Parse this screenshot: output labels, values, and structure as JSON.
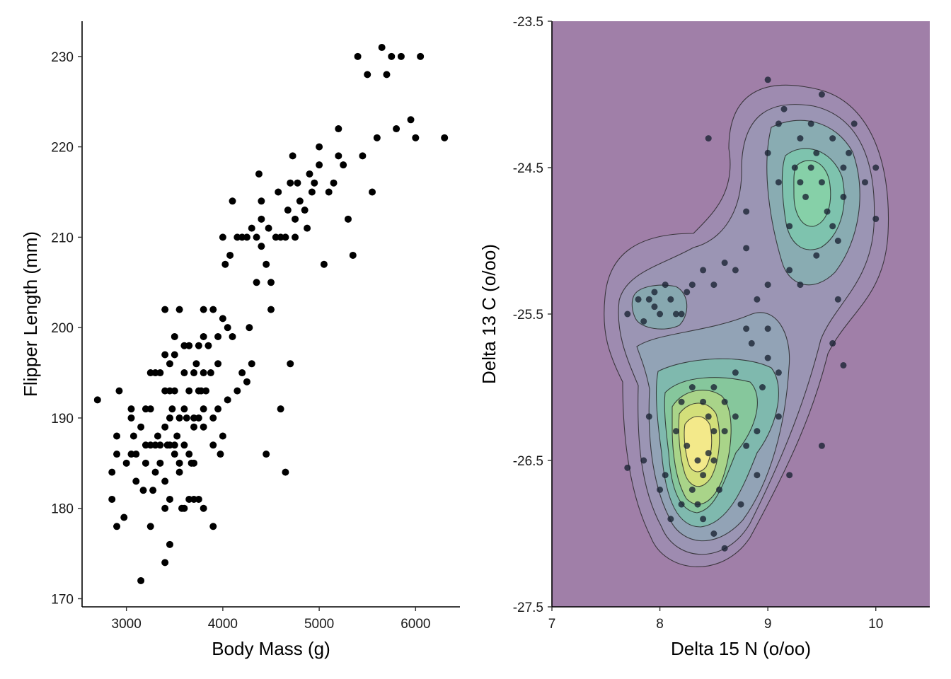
{
  "chart_data": [
    {
      "type": "scatter",
      "xlabel": "Body Mass (g)",
      "ylabel": "Flipper Length (mm)",
      "xlim": [
        2540,
        6460
      ],
      "ylim": [
        169.1,
        233.9
      ],
      "xticks": [
        3000,
        4000,
        5000,
        6000
      ],
      "yticks": [
        170,
        180,
        190,
        200,
        210,
        220,
        230
      ],
      "tick_labels_x": [
        "3000",
        "4000",
        "5000",
        "6000"
      ],
      "tick_labels_y": [
        "170",
        "180",
        "190",
        "200",
        "210",
        "220",
        "230"
      ],
      "grid": false,
      "point_color": "#000000",
      "points": [
        [
          2700,
          192
        ],
        [
          2850,
          184
        ],
        [
          2850,
          181
        ],
        [
          2900,
          178
        ],
        [
          2900,
          186
        ],
        [
          2900,
          188
        ],
        [
          2925,
          193
        ],
        [
          2975,
          179
        ],
        [
          3000,
          185
        ],
        [
          3050,
          186
        ],
        [
          3050,
          191
        ],
        [
          3050,
          190
        ],
        [
          3075,
          188
        ],
        [
          3100,
          186
        ],
        [
          3100,
          183
        ],
        [
          3150,
          189
        ],
        [
          3150,
          172
        ],
        [
          3175,
          182
        ],
        [
          3200,
          191
        ],
        [
          3200,
          187
        ],
        [
          3200,
          185
        ],
        [
          3250,
          178
        ],
        [
          3250,
          195
        ],
        [
          3250,
          187
        ],
        [
          3250,
          191
        ],
        [
          3275,
          182
        ],
        [
          3300,
          184
        ],
        [
          3300,
          195
        ],
        [
          3300,
          187
        ],
        [
          3325,
          188
        ],
        [
          3350,
          187
        ],
        [
          3350,
          195
        ],
        [
          3350,
          185
        ],
        [
          3400,
          189
        ],
        [
          3400,
          174
        ],
        [
          3400,
          197
        ],
        [
          3400,
          193
        ],
        [
          3400,
          183
        ],
        [
          3400,
          180
        ],
        [
          3400,
          202
        ],
        [
          3425,
          187
        ],
        [
          3450,
          176
        ],
        [
          3450,
          196
        ],
        [
          3450,
          190
        ],
        [
          3450,
          193
        ],
        [
          3450,
          187
        ],
        [
          3450,
          181
        ],
        [
          3475,
          191
        ],
        [
          3500,
          187
        ],
        [
          3500,
          197
        ],
        [
          3500,
          193
        ],
        [
          3500,
          186
        ],
        [
          3500,
          199
        ],
        [
          3525,
          188
        ],
        [
          3550,
          185
        ],
        [
          3550,
          190
        ],
        [
          3550,
          202
        ],
        [
          3550,
          184
        ],
        [
          3575,
          180
        ],
        [
          3600,
          191
        ],
        [
          3600,
          195
        ],
        [
          3600,
          198
        ],
        [
          3600,
          180
        ],
        [
          3600,
          187
        ],
        [
          3625,
          190
        ],
        [
          3650,
          186
        ],
        [
          3650,
          193
        ],
        [
          3650,
          181
        ],
        [
          3650,
          198
        ],
        [
          3675,
          185
        ],
        [
          3700,
          185
        ],
        [
          3700,
          190
        ],
        [
          3700,
          195
        ],
        [
          3700,
          189
        ],
        [
          3700,
          181
        ],
        [
          3725,
          196
        ],
        [
          3750,
          181
        ],
        [
          3750,
          190
        ],
        [
          3750,
          193
        ],
        [
          3750,
          198
        ],
        [
          3775,
          193
        ],
        [
          3800,
          189
        ],
        [
          3800,
          180
        ],
        [
          3800,
          195
        ],
        [
          3800,
          191
        ],
        [
          3800,
          199
        ],
        [
          3800,
          202
        ],
        [
          3825,
          193
        ],
        [
          3850,
          198
        ],
        [
          3875,
          195
        ],
        [
          3900,
          187
        ],
        [
          3900,
          190
        ],
        [
          3900,
          178
        ],
        [
          3900,
          202
        ],
        [
          3950,
          199
        ],
        [
          3950,
          191
        ],
        [
          3950,
          196
        ],
        [
          3975,
          186
        ],
        [
          4000,
          210
        ],
        [
          4000,
          188
        ],
        [
          4000,
          201
        ],
        [
          4025,
          207
        ],
        [
          4050,
          200
        ],
        [
          4050,
          192
        ],
        [
          4075,
          208
        ],
        [
          4100,
          199
        ],
        [
          4100,
          214
        ],
        [
          4150,
          210
        ],
        [
          4150,
          193
        ],
        [
          4200,
          195
        ],
        [
          4200,
          210
        ],
        [
          4250,
          210
        ],
        [
          4250,
          194
        ],
        [
          4275,
          200
        ],
        [
          4300,
          211
        ],
        [
          4300,
          196
        ],
        [
          4350,
          205
        ],
        [
          4350,
          210
        ],
        [
          4375,
          217
        ],
        [
          4400,
          209
        ],
        [
          4400,
          212
        ],
        [
          4400,
          214
        ],
        [
          4450,
          207
        ],
        [
          4450,
          186
        ],
        [
          4475,
          211
        ],
        [
          4500,
          202
        ],
        [
          4500,
          205
        ],
        [
          4550,
          210
        ],
        [
          4575,
          215
        ],
        [
          4600,
          210
        ],
        [
          4600,
          191
        ],
        [
          4650,
          210
        ],
        [
          4650,
          184
        ],
        [
          4675,
          213
        ],
        [
          4700,
          216
        ],
        [
          4700,
          196
        ],
        [
          4725,
          219
        ],
        [
          4750,
          212
        ],
        [
          4750,
          210
        ],
        [
          4775,
          216
        ],
        [
          4800,
          214
        ],
        [
          4850,
          213
        ],
        [
          4875,
          211
        ],
        [
          4900,
          217
        ],
        [
          4925,
          215
        ],
        [
          4950,
          216
        ],
        [
          5000,
          220
        ],
        [
          5000,
          218
        ],
        [
          5050,
          207
        ],
        [
          5100,
          215
        ],
        [
          5150,
          216
        ],
        [
          5200,
          222
        ],
        [
          5200,
          219
        ],
        [
          5250,
          218
        ],
        [
          5300,
          212
        ],
        [
          5350,
          208
        ],
        [
          5400,
          230
        ],
        [
          5450,
          219
        ],
        [
          5500,
          228
        ],
        [
          5550,
          215
        ],
        [
          5600,
          221
        ],
        [
          5650,
          231
        ],
        [
          5700,
          228
        ],
        [
          5750,
          230
        ],
        [
          5800,
          222
        ],
        [
          5850,
          230
        ],
        [
          5950,
          223
        ],
        [
          6000,
          221
        ],
        [
          6050,
          230
        ],
        [
          6300,
          221
        ]
      ]
    },
    {
      "type": "contour",
      "xlabel": "Delta 15 N (o/oo)",
      "ylabel": "Delta 13 C (o/oo)",
      "xlim": [
        7.0,
        10.5
      ],
      "ylim": [
        -27.5,
        -23.5
      ],
      "xticks": [
        7,
        8,
        9,
        10
      ],
      "yticks": [
        -27.5,
        -26.5,
        -25.5,
        -24.5,
        -23.5
      ],
      "tick_labels_x": [
        "7",
        "8",
        "9",
        "10"
      ],
      "tick_labels_y": [
        "-27.5",
        "-26.5",
        "-25.5",
        "-24.5",
        "-23.5"
      ],
      "grid": false,
      "background_fill": "#a07fa8",
      "density_centers": [
        {
          "x": 8.4,
          "y": -26.35,
          "level": "high"
        },
        {
          "x": 9.35,
          "y": -24.55,
          "level": "medium"
        },
        {
          "x": 8.0,
          "y": -25.45,
          "level": "low"
        }
      ],
      "points": [
        [
          8.3,
          -26.0
        ],
        [
          8.4,
          -26.1
        ],
        [
          8.5,
          -26.3
        ],
        [
          8.35,
          -26.5
        ],
        [
          8.45,
          -26.2
        ],
        [
          8.25,
          -26.4
        ],
        [
          8.4,
          -26.6
        ],
        [
          8.5,
          -26.5
        ],
        [
          8.3,
          -26.7
        ],
        [
          8.6,
          -26.3
        ],
        [
          8.2,
          -26.1
        ],
        [
          8.5,
          -26.0
        ],
        [
          8.35,
          -26.8
        ],
        [
          8.55,
          -26.7
        ],
        [
          8.4,
          -26.9
        ],
        [
          8.15,
          -26.3
        ],
        [
          8.45,
          -26.45
        ],
        [
          8.6,
          -26.1
        ],
        [
          8.7,
          -26.2
        ],
        [
          8.8,
          -26.4
        ],
        [
          8.9,
          -26.3
        ],
        [
          8.95,
          -26.0
        ],
        [
          9.0,
          -25.8
        ],
        [
          9.1,
          -25.9
        ],
        [
          8.85,
          -25.7
        ],
        [
          8.7,
          -25.9
        ],
        [
          8.9,
          -26.6
        ],
        [
          8.75,
          -26.8
        ],
        [
          8.5,
          -27.0
        ],
        [
          8.05,
          -26.6
        ],
        [
          7.9,
          -26.2
        ],
        [
          7.85,
          -26.5
        ],
        [
          8.0,
          -26.7
        ],
        [
          8.1,
          -26.9
        ],
        [
          8.2,
          -26.8
        ],
        [
          8.6,
          -27.1
        ],
        [
          9.1,
          -26.2
        ],
        [
          9.2,
          -26.6
        ],
        [
          9.0,
          -25.6
        ],
        [
          8.8,
          -25.6
        ],
        [
          9.3,
          -24.6
        ],
        [
          9.4,
          -24.5
        ],
        [
          9.35,
          -24.7
        ],
        [
          9.45,
          -24.4
        ],
        [
          9.25,
          -24.5
        ],
        [
          9.5,
          -24.6
        ],
        [
          9.4,
          -24.2
        ],
        [
          9.3,
          -24.3
        ],
        [
          9.55,
          -24.8
        ],
        [
          9.2,
          -24.9
        ],
        [
          9.6,
          -24.3
        ],
        [
          9.15,
          -24.1
        ],
        [
          9.6,
          -24.9
        ],
        [
          9.7,
          -24.5
        ],
        [
          9.1,
          -24.6
        ],
        [
          9.0,
          -24.4
        ],
        [
          9.5,
          -24.0
        ],
        [
          9.45,
          -25.1
        ],
        [
          9.2,
          -25.2
        ],
        [
          9.7,
          -24.7
        ],
        [
          9.8,
          -24.2
        ],
        [
          9.3,
          -25.3
        ],
        [
          9.65,
          -25.0
        ],
        [
          9.1,
          -24.2
        ],
        [
          9.9,
          -24.6
        ],
        [
          7.9,
          -25.4
        ],
        [
          8.0,
          -25.5
        ],
        [
          8.1,
          -25.4
        ],
        [
          7.95,
          -25.45
        ],
        [
          8.05,
          -25.3
        ],
        [
          8.2,
          -25.5
        ],
        [
          7.8,
          -25.4
        ],
        [
          7.7,
          -25.5
        ],
        [
          8.25,
          -25.35
        ],
        [
          7.85,
          -25.55
        ],
        [
          7.95,
          -25.35
        ],
        [
          8.15,
          -25.5
        ],
        [
          8.5,
          -25.3
        ],
        [
          8.7,
          -25.2
        ],
        [
          8.9,
          -25.4
        ],
        [
          9.0,
          -25.3
        ],
        [
          8.6,
          -25.15
        ],
        [
          8.8,
          -25.05
        ],
        [
          8.4,
          -25.2
        ],
        [
          8.3,
          -25.3
        ],
        [
          9.5,
          -26.4
        ],
        [
          9.6,
          -25.7
        ],
        [
          9.65,
          -25.4
        ],
        [
          9.0,
          -23.9
        ],
        [
          8.45,
          -24.3
        ],
        [
          8.8,
          -24.8
        ],
        [
          7.7,
          -26.55
        ],
        [
          10.0,
          -24.5
        ],
        [
          10.0,
          -24.85
        ],
        [
          9.7,
          -25.85
        ],
        [
          9.75,
          -24.4
        ]
      ]
    }
  ]
}
